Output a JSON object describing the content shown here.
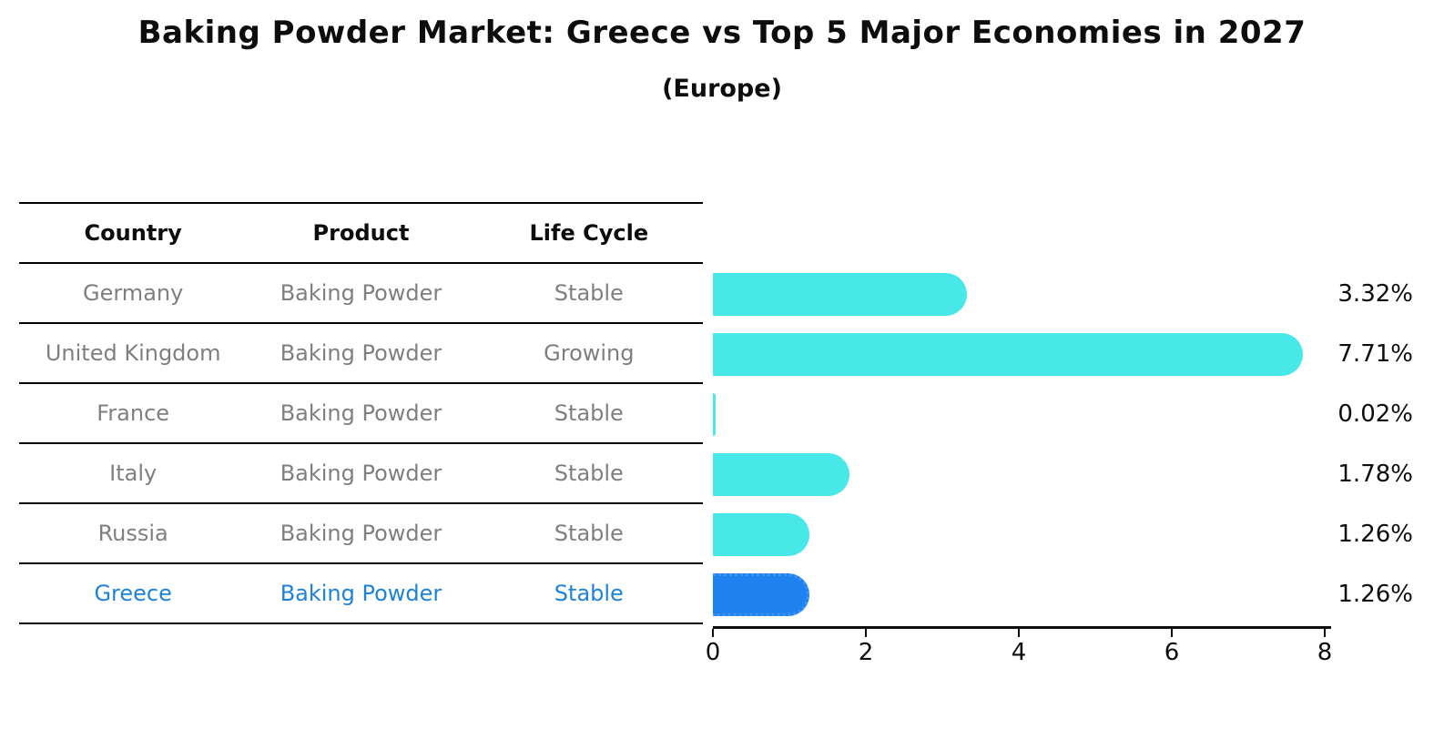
{
  "title": "Baking Powder Market: Greece vs Top 5 Major Economies in 2027",
  "subtitle": "(Europe)",
  "table": {
    "columns": [
      "Country",
      "Product",
      "Life Cycle"
    ],
    "rows": [
      {
        "country": "Germany",
        "product": "Baking Powder",
        "life_cycle": "Stable",
        "highlight": false
      },
      {
        "country": "United Kingdom",
        "product": "Baking Powder",
        "life_cycle": "Growing",
        "highlight": false
      },
      {
        "country": "France",
        "product": "Baking Powder",
        "life_cycle": "Stable",
        "highlight": false
      },
      {
        "country": "Italy",
        "product": "Baking Powder",
        "life_cycle": "Stable",
        "highlight": false
      },
      {
        "country": "Russia",
        "product": "Baking Powder",
        "life_cycle": "Stable",
        "highlight": false
      },
      {
        "country": "Greece",
        "product": "Baking Powder",
        "life_cycle": "Stable",
        "highlight": true
      }
    ]
  },
  "chart_data": {
    "type": "bar",
    "orientation": "horizontal",
    "title": "Baking Powder Market: Greece vs Top 5 Major Economies in 2027",
    "subtitle": "(Europe)",
    "categories": [
      "Germany",
      "United Kingdom",
      "France",
      "Italy",
      "Russia",
      "Greece"
    ],
    "values": [
      3.32,
      7.71,
      0.02,
      1.78,
      1.26,
      1.26
    ],
    "value_labels": [
      "3.32%",
      "7.71%",
      "0.02%",
      "1.78%",
      "1.26%",
      "1.26%"
    ],
    "xlabel": "",
    "ylabel": "",
    "xlim": [
      0,
      8
    ],
    "xticks": [
      0,
      2,
      4,
      6,
      8
    ],
    "grid": false,
    "legend": "none",
    "highlight_index": 5
  },
  "colors": {
    "bar": "#48E8E8",
    "highlight_bar": "#1E82F0",
    "highlight_bar_border": "#3D96F2",
    "table_text": "#7F7F7F",
    "highlight_text": "#1E82D6",
    "axis_text": "#0D0D0D"
  }
}
